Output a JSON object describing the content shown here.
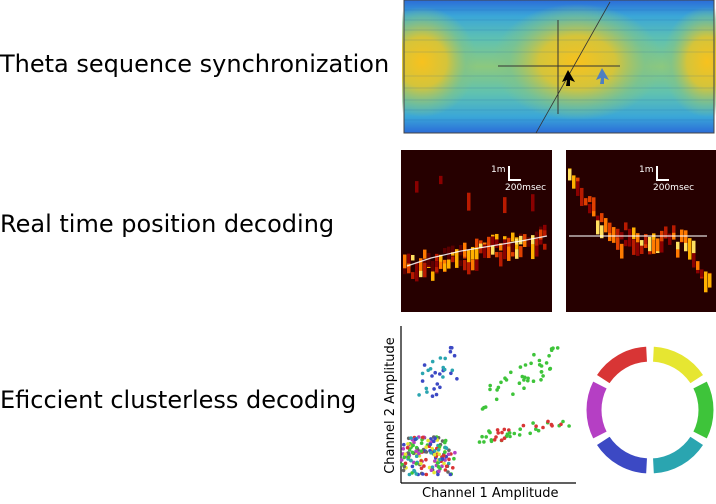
{
  "rows": [
    {
      "label": "Theta sequence synchronization"
    },
    {
      "label": "Real time position decoding"
    },
    {
      "label": "Eficcient clusterless decoding"
    }
  ],
  "decoding": {
    "scale_distance": "1m",
    "scale_time": "200msec"
  },
  "cluster_plot": {
    "xlabel": "Channel 1 Amplitude",
    "ylabel": "Channel 2 Amplitude"
  },
  "colors": {
    "arrow_black": "#000000",
    "arrow_blue": "#4f7fc0",
    "cluster_cyan": "#2aa5b0",
    "cluster_green": "#3ec43a",
    "cluster_red": "#d83535",
    "ring": [
      "#e6e631",
      "#3ec43a",
      "#2aa5b0",
      "#3c49c4",
      "#b53fc4",
      "#d83535"
    ]
  }
}
